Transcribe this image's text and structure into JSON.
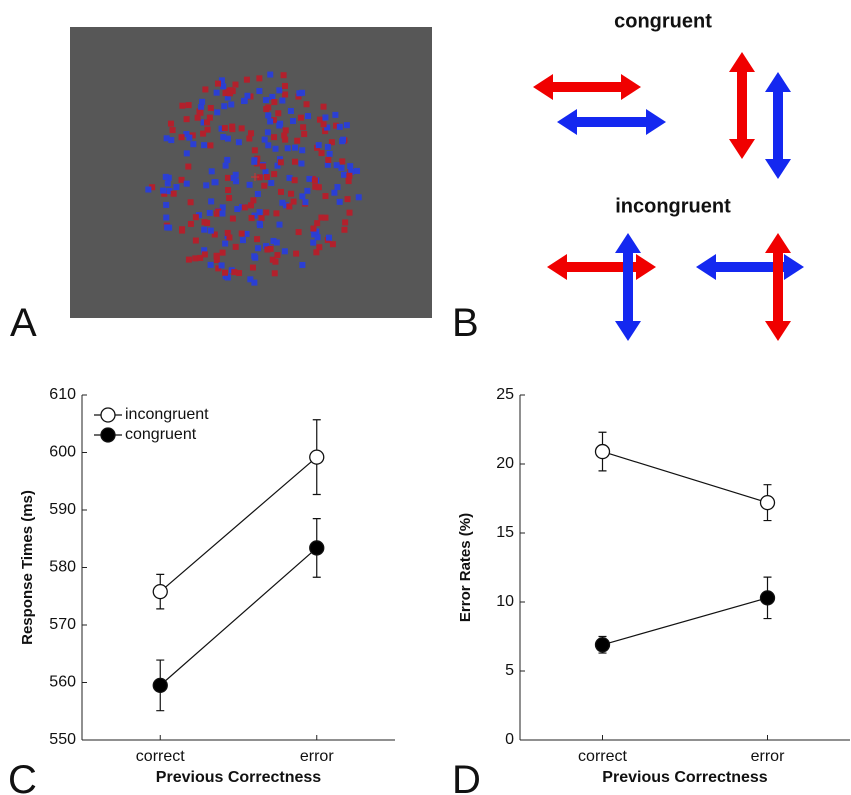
{
  "figure": {
    "panel_labels": [
      "A",
      "B",
      "C",
      "D"
    ],
    "congruent_label": "congruent",
    "incongruent_label": "incongruent"
  },
  "chart_data": [
    {
      "type": "line",
      "x_label": "Previous Correctness",
      "y_label": "Response Times (ms)",
      "categories": [
        "correct",
        "error"
      ],
      "ylim": [
        550,
        610
      ],
      "yticks": [
        550,
        560,
        570,
        580,
        590,
        600,
        610
      ],
      "legend": "upper left",
      "series": [
        {
          "name": "incongruent",
          "color": "#ffffff",
          "values": [
            575.8,
            599.2
          ],
          "errors": [
            3,
            6.5
          ]
        },
        {
          "name": "congruent",
          "color": "#000000",
          "values": [
            559.5,
            583.4
          ],
          "errors": [
            4.4,
            5.1
          ]
        }
      ]
    },
    {
      "type": "line",
      "x_label": "Previous Correctness",
      "y_label": "Error Rates (%)",
      "categories": [
        "correct",
        "error"
      ],
      "ylim": [
        0,
        25
      ],
      "yticks": [
        0,
        5,
        10,
        15,
        20,
        25
      ],
      "series": [
        {
          "color": "#ffffff",
          "values": [
            20.9,
            17.2
          ],
          "errors": [
            1.4,
            1.3
          ]
        },
        {
          "color": "#000000",
          "values": [
            6.9,
            10.3
          ],
          "errors": [
            0.6,
            1.5
          ]
        }
      ]
    }
  ]
}
